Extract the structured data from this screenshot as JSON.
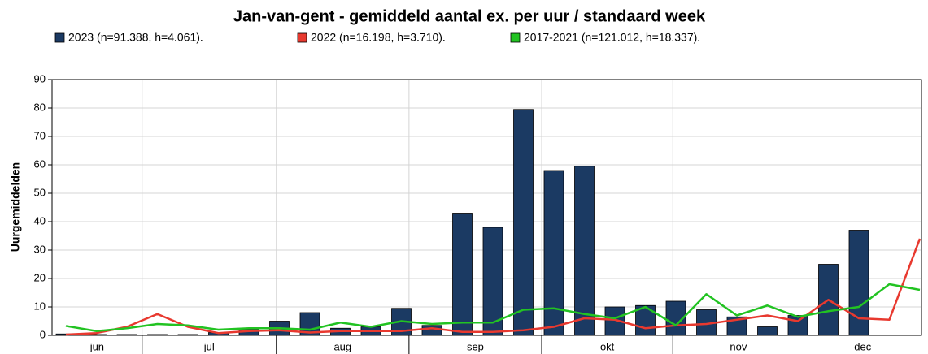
{
  "chart_data": {
    "type": "bar",
    "title": "Jan-van-gent - gemiddeld aantal ex. per uur / standaard week",
    "y_label": "Uurgemiddelden",
    "categories": [
      null,
      null,
      null,
      null,
      null,
      null,
      null,
      null,
      null,
      null,
      null,
      null,
      null,
      null,
      null,
      null,
      null,
      null,
      null,
      null,
      null,
      null,
      null,
      null,
      null,
      null,
      null,
      null,
      null
    ],
    "series": [
      {
        "name": "2023 (n=91.388, h=4.061).",
        "type": "bar",
        "color": "#1b3a63",
        "values": [
          0.5,
          0.3,
          0.3,
          0.3,
          0.3,
          1,
          2,
          5,
          8,
          2.5,
          3,
          9.5,
          3.5,
          43,
          38,
          79.5,
          58,
          59.5,
          10,
          10.5,
          12,
          9,
          6.5,
          3,
          7,
          25,
          37,
          null,
          null
        ]
      },
      {
        "name": "2022 (n=16.198, h=3.710).",
        "type": "line",
        "color": "#e8392f",
        "values": [
          0.3,
          0.8,
          3,
          7.5,
          3,
          0.8,
          1.5,
          1.8,
          1,
          1.5,
          1.5,
          1.5,
          2.5,
          1.2,
          1.2,
          1.8,
          3,
          6,
          5.5,
          2.5,
          3.5,
          4,
          5.5,
          7,
          5,
          12.5,
          6,
          5.5,
          34
        ]
      },
      {
        "name": "2017-2021 (n=121.012, h=18.337).",
        "type": "line",
        "color": "#22c322",
        "values": [
          3.3,
          1.5,
          2.5,
          4,
          3.5,
          2,
          2.5,
          2.5,
          2,
          4.5,
          3,
          5,
          4,
          4.5,
          4.5,
          9,
          9.5,
          7.5,
          6,
          10,
          3.5,
          14.5,
          7,
          10.5,
          6.5,
          8.5,
          10,
          18,
          16
        ]
      }
    ],
    "xticks": [
      2.5,
      6.9,
      11.25,
      15.6,
      19.9,
      24.2
    ],
    "x_labels": [
      "jun",
      "jul",
      "aug",
      "sep",
      "okt",
      "nov",
      "dec"
    ],
    "ylim": [
      0,
      90
    ],
    "yticks": [
      0,
      10,
      20,
      30,
      40,
      50,
      60,
      70,
      80,
      90
    ],
    "grid": true
  }
}
